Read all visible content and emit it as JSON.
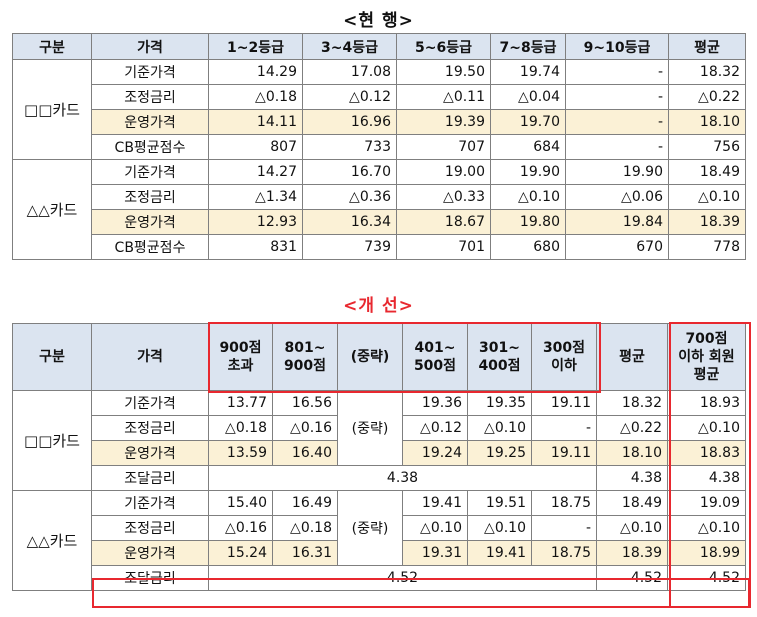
{
  "current": {
    "title": "<현 행>",
    "headers": [
      "구분",
      "가격",
      "1~2등급",
      "3~4등급",
      "5~6등급",
      "7~8등급",
      "9~10등급",
      "평균"
    ],
    "groups": [
      {
        "name": "□□카드",
        "rows": [
          {
            "label": "기준가격",
            "values": [
              "14.29",
              "17.08",
              "19.50",
              "19.74",
              "-",
              "18.32"
            ]
          },
          {
            "label": "조정금리",
            "values": [
              "△0.18",
              "△0.12",
              "△0.11",
              "△0.04",
              "-",
              "△0.22"
            ]
          },
          {
            "label": "운영가격",
            "values": [
              "14.11",
              "16.96",
              "19.39",
              "19.70",
              "-",
              "18.10"
            ]
          },
          {
            "label": "CB평균점수",
            "values": [
              "807",
              "733",
              "707",
              "684",
              "-",
              "756"
            ]
          }
        ]
      },
      {
        "name": "△△카드",
        "rows": [
          {
            "label": "기준가격",
            "values": [
              "14.27",
              "16.70",
              "19.00",
              "19.90",
              "19.90",
              "18.49"
            ]
          },
          {
            "label": "조정금리",
            "values": [
              "△1.34",
              "△0.36",
              "△0.33",
              "△0.10",
              "△0.06",
              "△0.10"
            ]
          },
          {
            "label": "운영가격",
            "values": [
              "12.93",
              "16.34",
              "18.67",
              "19.80",
              "19.84",
              "18.39"
            ]
          },
          {
            "label": "CB평균점수",
            "values": [
              "831",
              "739",
              "701",
              "680",
              "670",
              "778"
            ]
          }
        ]
      }
    ]
  },
  "improved": {
    "title": "<개 선>",
    "headers": [
      "구분",
      "가격",
      "900점\n초과",
      "801~\n900점",
      "(중략)",
      "401~\n500점",
      "301~\n400점",
      "300점\n이하",
      "평균",
      "700점\n이하 회원\n평균"
    ],
    "omitted_label": "(중략)",
    "groups": [
      {
        "name": "□□카드",
        "rows": [
          {
            "label": "기준가격",
            "values": [
              "13.77",
              "16.56",
              "19.36",
              "19.35",
              "19.11",
              "18.32",
              "18.93"
            ]
          },
          {
            "label": "조정금리",
            "values": [
              "△0.18",
              "△0.16",
              "△0.12",
              "△0.10",
              "-",
              "△0.22",
              "△0.10"
            ]
          },
          {
            "label": "운영가격",
            "values": [
              "13.59",
              "16.40",
              "19.24",
              "19.25",
              "19.11",
              "18.10",
              "18.83"
            ]
          }
        ],
        "funding": {
          "label": "조달금리",
          "value": "4.38",
          "avg": "4.38",
          "avg700": "4.38"
        }
      },
      {
        "name": "△△카드",
        "rows": [
          {
            "label": "기준가격",
            "values": [
              "15.40",
              "16.49",
              "19.41",
              "19.51",
              "18.75",
              "18.49",
              "19.09"
            ]
          },
          {
            "label": "조정금리",
            "values": [
              "△0.16",
              "△0.18",
              "△0.10",
              "△0.10",
              "-",
              "△0.10",
              "△0.10"
            ]
          },
          {
            "label": "운영가격",
            "values": [
              "15.24",
              "16.31",
              "19.31",
              "19.41",
              "18.75",
              "18.39",
              "18.99"
            ]
          }
        ],
        "funding": {
          "label": "조달금리",
          "value": "4.52",
          "avg": "4.52",
          "avg700": "4.52"
        }
      }
    ]
  },
  "colors": {
    "accent_red": "#e8282f",
    "header_bg": "#dbe4f0",
    "highlight_bg": "#fbf1d6"
  }
}
